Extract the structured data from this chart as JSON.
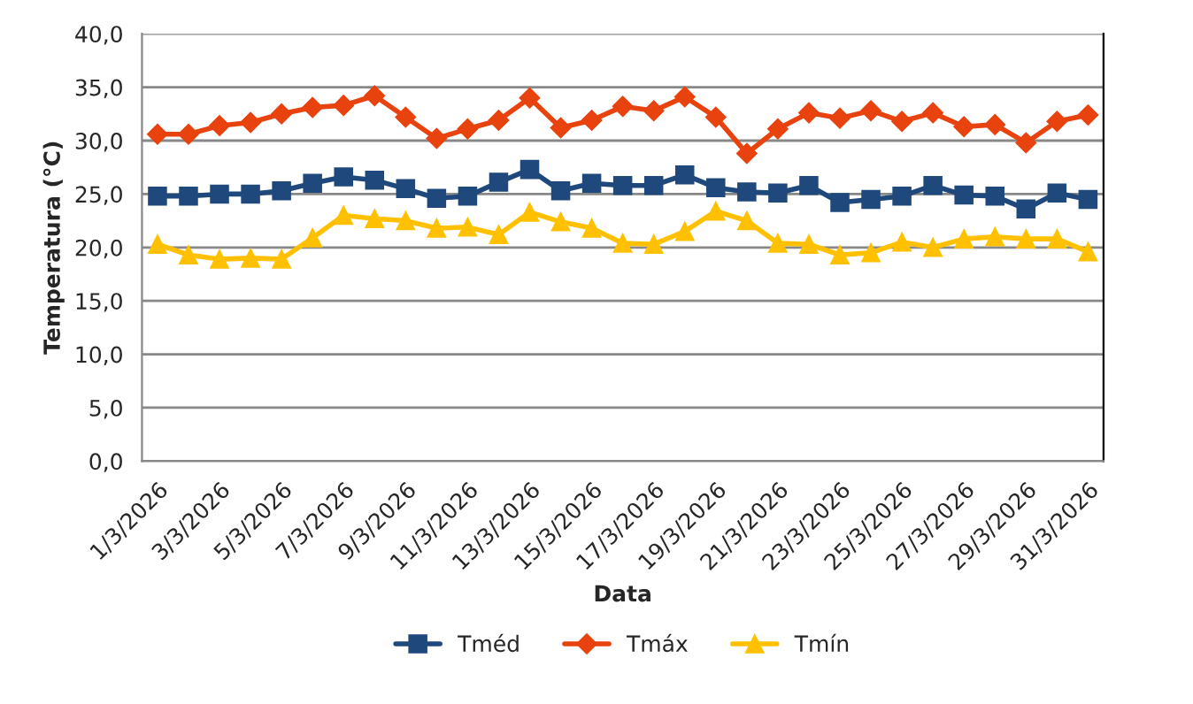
{
  "chart_data": {
    "type": "line",
    "xlabel": "Data",
    "ylabel": "Temperatura (°C)",
    "categories": [
      "1/3/2026",
      null,
      "3/3/2026",
      null,
      "5/3/2026",
      null,
      "7/3/2026",
      null,
      "9/3/2026",
      null,
      "11/3/2026",
      null,
      "13/3/2026",
      null,
      "15/3/2026",
      null,
      "17/3/2026",
      null,
      "19/3/2026",
      null,
      "21/3/2026",
      null,
      "23/3/2026",
      null,
      "25/3/2026",
      null,
      "27/3/2026",
      null,
      "29/3/2026",
      null,
      "31/3/2026"
    ],
    "series": [
      {
        "name": "Tméd",
        "color": "#1f497d",
        "marker": "square",
        "values": [
          24.8,
          24.8,
          25.0,
          25.0,
          25.3,
          26.0,
          26.6,
          26.3,
          25.5,
          24.6,
          24.8,
          26.1,
          27.3,
          25.3,
          26.0,
          25.8,
          25.8,
          26.8,
          25.6,
          25.2,
          25.1,
          25.8,
          24.2,
          24.5,
          24.8,
          25.8,
          24.9,
          24.8,
          23.6,
          25.1,
          24.5
        ]
      },
      {
        "name": "Tmáx",
        "color": "#e8420e",
        "marker": "diamond",
        "values": [
          30.6,
          30.6,
          31.4,
          31.7,
          32.5,
          33.1,
          33.3,
          34.2,
          32.2,
          30.2,
          31.1,
          31.9,
          34.0,
          31.2,
          31.9,
          33.2,
          32.8,
          34.1,
          32.2,
          28.8,
          31.1,
          32.6,
          32.1,
          32.8,
          31.8,
          32.6,
          31.3,
          31.5,
          29.8,
          31.8,
          32.4
        ]
      },
      {
        "name": "Tmín",
        "color": "#ffc000",
        "marker": "triangle",
        "values": [
          20.3,
          19.3,
          18.9,
          19.0,
          18.9,
          20.9,
          23.0,
          22.7,
          22.5,
          21.8,
          21.9,
          21.2,
          23.3,
          22.4,
          21.8,
          20.4,
          20.3,
          21.5,
          23.4,
          22.5,
          20.4,
          20.3,
          19.3,
          19.5,
          20.5,
          20.0,
          20.8,
          21.0,
          20.8,
          20.8,
          19.6
        ]
      }
    ],
    "ylim": [
      0,
      40
    ],
    "yticks": [
      {
        "value": 0,
        "label": "0,0"
      },
      {
        "value": 5,
        "label": "5,0"
      },
      {
        "value": 10,
        "label": "10,0"
      },
      {
        "value": 15,
        "label": "15,0"
      },
      {
        "value": 20,
        "label": "20,0"
      },
      {
        "value": 25,
        "label": "25,0"
      },
      {
        "value": 30,
        "label": "30,0"
      },
      {
        "value": 35,
        "label": "35,0"
      },
      {
        "value": 40,
        "label": "40,0"
      }
    ],
    "grid": "y",
    "legend": "bottom"
  }
}
